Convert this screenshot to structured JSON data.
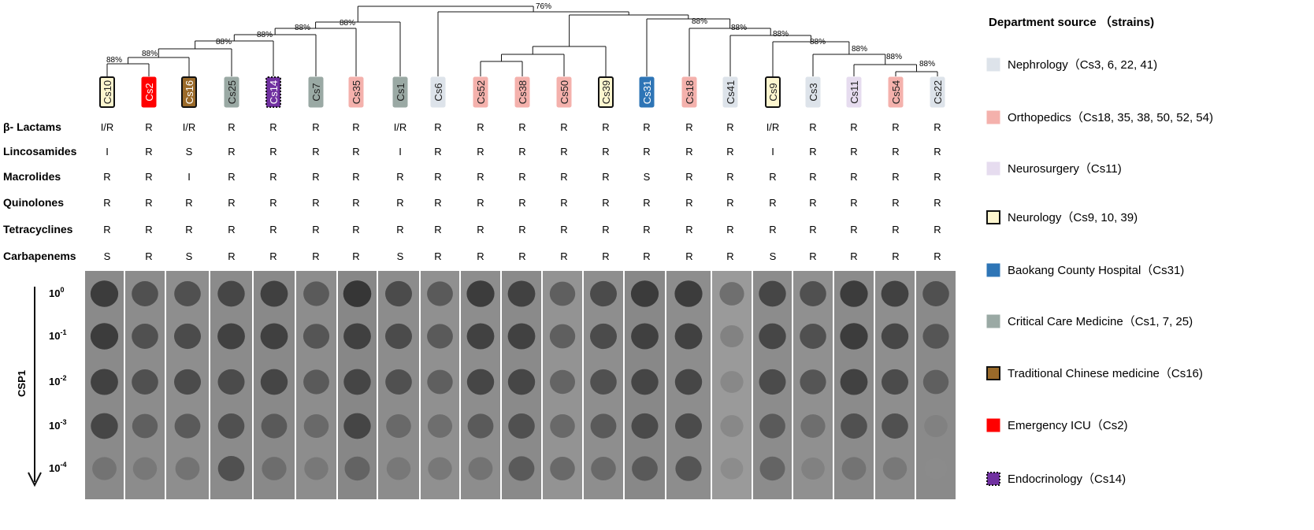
{
  "departments": {
    "nephrology": {
      "fill": "#dde3ea",
      "stroke": "#dde3ea",
      "label": "Nephrology（Cs3, 6, 22, 41)"
    },
    "orthopedics": {
      "fill": "#f4b1ac",
      "stroke": "#f4b1ac",
      "label": "Orthopedics（Cs18, 35, 38, 50, 52, 54)"
    },
    "neurosurgery": {
      "fill": "#e6dcef",
      "stroke": "#e6dcef",
      "label": "Neurosurgery（Cs11)"
    },
    "neurology": {
      "fill": "#fdf6cf",
      "stroke": "#111111",
      "label": "Neurology（Cs9, 10, 39)"
    },
    "baokang": {
      "fill": "#2e75b6",
      "stroke": "#2e75b6",
      "label": "Baokang County Hospital（Cs31)"
    },
    "critical": {
      "fill": "#9aa9a4",
      "stroke": "#9aa9a4",
      "label": "Critical Care Medicine（Cs1, 7, 25)"
    },
    "tcm": {
      "fill": "#9a6a2a",
      "stroke": "#111111",
      "label": "Traditional Chinese medicine（Cs16)"
    },
    "emergency": {
      "fill": "#ff0000",
      "stroke": "#ff0000",
      "label": "Emergency ICU（Cs2)"
    },
    "endocrinology": {
      "fill": "#7030a0",
      "stroke": "#111111",
      "label": "Endocrinology（Cs14)",
      "dashed": true
    }
  },
  "legend": {
    "title": "Department source （strains)",
    "order": [
      "nephrology",
      "orthopedics",
      "neurosurgery",
      "neurology",
      "baokang",
      "critical",
      "tcm",
      "emergency",
      "endocrinology"
    ]
  },
  "strains": [
    {
      "name": "Cs10",
      "dept": "neurology"
    },
    {
      "name": "Cs2",
      "dept": "emergency"
    },
    {
      "name": "Cs16",
      "dept": "tcm"
    },
    {
      "name": "Cs25",
      "dept": "critical"
    },
    {
      "name": "Cs14",
      "dept": "endocrinology"
    },
    {
      "name": "Cs7",
      "dept": "critical"
    },
    {
      "name": "Cs35",
      "dept": "orthopedics"
    },
    {
      "name": "Cs1",
      "dept": "critical"
    },
    {
      "name": "Cs6",
      "dept": "nephrology"
    },
    {
      "name": "Cs52",
      "dept": "orthopedics"
    },
    {
      "name": "Cs38",
      "dept": "orthopedics"
    },
    {
      "name": "Cs50",
      "dept": "orthopedics"
    },
    {
      "name": "Cs39",
      "dept": "neurology"
    },
    {
      "name": "Cs31",
      "dept": "baokang"
    },
    {
      "name": "Cs18",
      "dept": "orthopedics"
    },
    {
      "name": "Cs41",
      "dept": "nephrology"
    },
    {
      "name": "Cs9",
      "dept": "neurology"
    },
    {
      "name": "Cs3",
      "dept": "nephrology"
    },
    {
      "name": "Cs11",
      "dept": "neurosurgery"
    },
    {
      "name": "Cs54",
      "dept": "orthopedics"
    },
    {
      "name": "Cs22",
      "dept": "nephrology"
    }
  ],
  "antibiotics": [
    {
      "label": "β- Lactams",
      "values": [
        "I/R",
        "R",
        "I/R",
        "R",
        "R",
        "R",
        "R",
        "I/R",
        "R",
        "R",
        "R",
        "R",
        "R",
        "R",
        "R",
        "R",
        "I/R",
        "R",
        "R",
        "R",
        "R"
      ]
    },
    {
      "label": "Lincosamides",
      "values": [
        "I",
        "R",
        "S",
        "R",
        "R",
        "R",
        "R",
        "I",
        "R",
        "R",
        "R",
        "R",
        "R",
        "R",
        "R",
        "R",
        "I",
        "R",
        "R",
        "R",
        "R"
      ]
    },
    {
      "label": "Macrolides",
      "values": [
        "R",
        "R",
        "I",
        "R",
        "R",
        "R",
        "R",
        "R",
        "R",
        "R",
        "R",
        "R",
        "R",
        "S",
        "R",
        "R",
        "R",
        "R",
        "R",
        "R",
        "R"
      ]
    },
    {
      "label": "Quinolones",
      "values": [
        "R",
        "R",
        "R",
        "R",
        "R",
        "R",
        "R",
        "R",
        "R",
        "R",
        "R",
        "R",
        "R",
        "R",
        "R",
        "R",
        "R",
        "R",
        "R",
        "R",
        "R"
      ]
    },
    {
      "label": "Tetracyclines",
      "values": [
        "R",
        "R",
        "R",
        "R",
        "R",
        "R",
        "R",
        "R",
        "R",
        "R",
        "R",
        "R",
        "R",
        "R",
        "R",
        "R",
        "R",
        "R",
        "R",
        "R",
        "R"
      ]
    },
    {
      "label": "Carbapenems",
      "values": [
        "S",
        "R",
        "S",
        "R",
        "R",
        "R",
        "R",
        "S",
        "R",
        "R",
        "R",
        "R",
        "R",
        "R",
        "R",
        "R",
        "S",
        "R",
        "R",
        "R",
        "R"
      ]
    }
  ],
  "tree": {
    "nodes": [
      {
        "id": "n1",
        "children": [
          0,
          1
        ],
        "label": "88%"
      },
      {
        "id": "n2",
        "children": [
          "n1",
          2
        ],
        "label": "88%"
      },
      {
        "id": "n3",
        "children": [
          "n2",
          3
        ],
        "label": "88%"
      },
      {
        "id": "n4",
        "children": [
          "n3",
          4
        ],
        "label": "88%"
      },
      {
        "id": "n5",
        "children": [
          "n4",
          5
        ],
        "label": "88%"
      },
      {
        "id": "n6",
        "children": [
          "n5",
          6
        ],
        "label": "88%"
      },
      {
        "id": "n7",
        "children": [
          "n6",
          7
        ],
        "label": ""
      },
      {
        "id": "n8",
        "children": [
          9,
          10
        ],
        "label": ""
      },
      {
        "id": "n9",
        "children": [
          "n8",
          11
        ],
        "label": ""
      },
      {
        "id": "n10",
        "children": [
          "n9",
          12
        ],
        "label": ""
      },
      {
        "id": "n11",
        "children": [
          19,
          20
        ],
        "label": "88%"
      },
      {
        "id": "n12",
        "children": [
          18,
          "n11"
        ],
        "label": "88%"
      },
      {
        "id": "n13",
        "children": [
          17,
          "n12"
        ],
        "label": "88%"
      },
      {
        "id": "n14",
        "children": [
          16,
          "n13"
        ],
        "label": "88%"
      },
      {
        "id": "n15",
        "children": [
          15,
          "n14"
        ],
        "label": "88%"
      },
      {
        "id": "n16",
        "children": [
          14,
          "n15"
        ],
        "label": "88%"
      },
      {
        "id": "n17",
        "children": [
          13,
          "n16"
        ],
        "label": ""
      },
      {
        "id": "n18",
        "children": [
          "n10",
          "n17"
        ],
        "label": "88%"
      },
      {
        "id": "n19",
        "children": [
          8,
          "n18"
        ],
        "label": ""
      },
      {
        "id": "n20",
        "children": [
          "n7",
          "n19"
        ],
        "label": "76%"
      }
    ]
  },
  "csp": {
    "axis_label": "CSP1",
    "dilutions": [
      {
        "base": "10",
        "exp": "0"
      },
      {
        "base": "10",
        "exp": "-1"
      },
      {
        "base": "10",
        "exp": "-2"
      },
      {
        "base": "10",
        "exp": "-3"
      },
      {
        "base": "10",
        "exp": "-4"
      }
    ],
    "growth": [
      [
        0.9,
        0.9,
        0.85,
        0.8,
        0.35
      ],
      [
        0.7,
        0.7,
        0.7,
        0.55,
        0.3
      ],
      [
        0.7,
        0.75,
        0.75,
        0.6,
        0.35
      ],
      [
        0.8,
        0.85,
        0.75,
        0.7,
        0.7
      ],
      [
        0.85,
        0.85,
        0.8,
        0.6,
        0.4
      ],
      [
        0.6,
        0.65,
        0.6,
        0.45,
        0.3
      ],
      [
        0.95,
        0.85,
        0.8,
        0.8,
        0.5
      ],
      [
        0.75,
        0.75,
        0.7,
        0.45,
        0.3
      ],
      [
        0.6,
        0.6,
        0.55,
        0.4,
        0.3
      ],
      [
        0.9,
        0.85,
        0.8,
        0.6,
        0.35
      ],
      [
        0.85,
        0.85,
        0.8,
        0.7,
        0.6
      ],
      [
        0.55,
        0.55,
        0.5,
        0.45,
        0.45
      ],
      [
        0.75,
        0.75,
        0.7,
        0.6,
        0.45
      ],
      [
        0.9,
        0.85,
        0.8,
        0.75,
        0.6
      ],
      [
        0.9,
        0.85,
        0.8,
        0.75,
        0.65
      ],
      [
        0.4,
        0.2,
        0.15,
        0.15,
        0.1
      ],
      [
        0.8,
        0.8,
        0.75,
        0.6,
        0.5
      ],
      [
        0.7,
        0.7,
        0.65,
        0.4,
        0.2
      ],
      [
        0.9,
        0.9,
        0.85,
        0.7,
        0.35
      ],
      [
        0.85,
        0.8,
        0.75,
        0.7,
        0.3
      ],
      [
        0.7,
        0.65,
        0.55,
        0.2,
        0.1
      ]
    ]
  }
}
